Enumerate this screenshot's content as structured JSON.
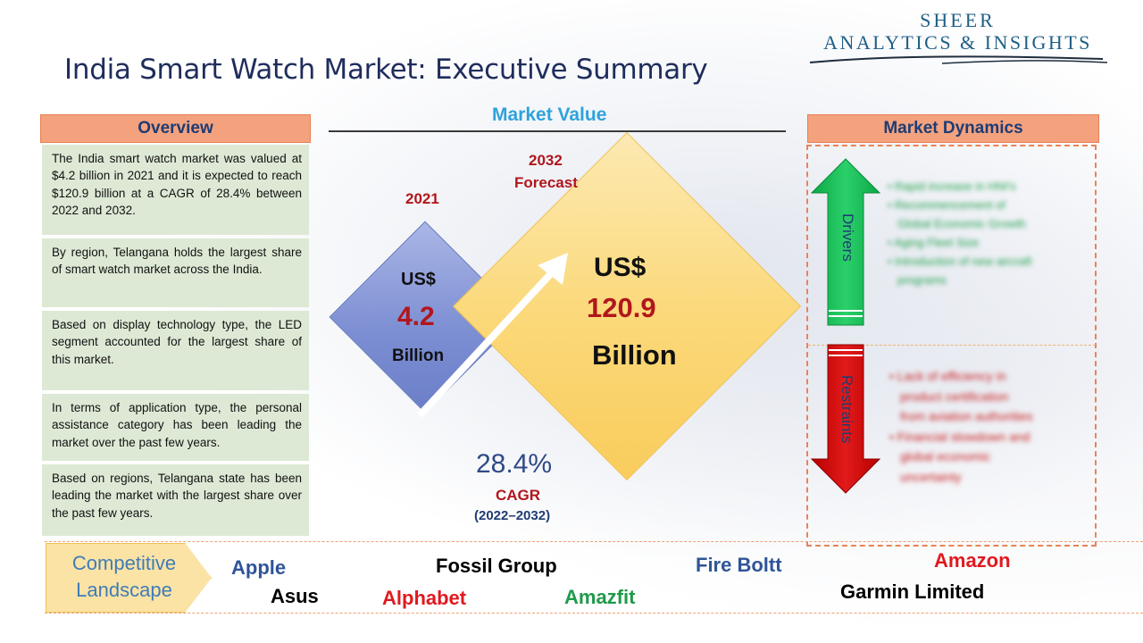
{
  "header": {
    "title": "India Smart Watch Market: Executive Summary",
    "logo_line1": "SHEER",
    "logo_line2": "ANALYTICS & INSIGHTS"
  },
  "overview": {
    "heading": "Overview",
    "items": [
      "The India smart watch market was valued at $4.2 billion in 2021 and it is expected to reach $120.9 billion at a CAGR of 28.4% between 2022 and 2032.",
      "By region, Telangana holds the largest share of smart watch market across the India.",
      "Based on display technology type, the LED segment accounted for the largest share of this market.",
      "In terms of application type, the personal assistance category has been leading the market over the past few years.",
      "Based on regions, Telangana state has been leading the market with the largest share over the past few years."
    ]
  },
  "market_value": {
    "heading": "Market Value",
    "year_2021": "2021",
    "small_currency": "US$",
    "small_value": "4.2",
    "small_unit": "Billion",
    "year_2032_line1": "2032",
    "year_2032_line2": "Forecast",
    "big_currency": "US$",
    "big_value": "120.9",
    "big_unit": "Billion",
    "cagr_value": "28.4%",
    "cagr_label": "CAGR",
    "cagr_period": "(2022–2032)"
  },
  "dynamics": {
    "heading": "Market Dynamics",
    "drivers_label": "Drivers",
    "restraints_label": "Restraints",
    "drivers": [
      "Rapid increase in HNI's",
      "Recommencement of",
      "Global Economic Growth",
      "Aging Fleet Size",
      "Introduction of new aircraft",
      "programs"
    ],
    "restraints": [
      "Lack of efficiency in",
      "product certification",
      "from aviation authorities",
      "Financial slowdown and",
      "global economic",
      "uncertainty"
    ],
    "colors": {
      "drivers": "#00b050",
      "restraints": "#c00000"
    }
  },
  "competitive": {
    "label_line1": "Competitive",
    "label_line2": "Landscape",
    "companies": [
      {
        "name": "Apple",
        "color": "#2f5597"
      },
      {
        "name": "Asus",
        "color": "#000000"
      },
      {
        "name": "Fossil Group",
        "color": "#000000"
      },
      {
        "name": "Alphabet",
        "color": "#e0191f"
      },
      {
        "name": "Amazfit",
        "color": "#1f9a4a"
      },
      {
        "name": "Fire Boltt",
        "color": "#2f5597"
      },
      {
        "name": "Amazon",
        "color": "#e0191f"
      },
      {
        "name": "Garmin Limited",
        "color": "#000000"
      }
    ]
  }
}
